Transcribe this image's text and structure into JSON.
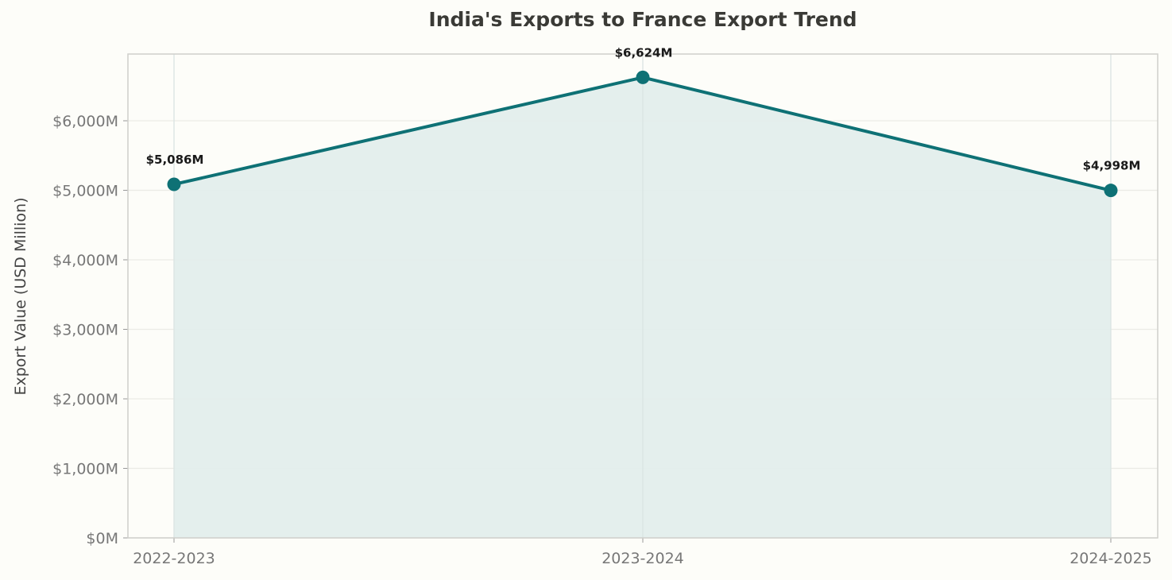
{
  "chart_data": {
    "type": "line",
    "title": "India's Exports to France Export Trend",
    "xlabel": "",
    "ylabel": "Export Value (USD Million)",
    "categories": [
      "2022-2023",
      "2023-2024",
      "2024-2025"
    ],
    "series": [
      {
        "name": "Exports",
        "values": [
          5086,
          6624,
          4998
        ],
        "labels": [
          "$5,086M",
          "$6,624M",
          "$4,998M"
        ],
        "color": "#0e7175",
        "fill": "#e3eeec"
      }
    ],
    "ylim": [
      0,
      6960
    ],
    "yticks": [
      0,
      1000,
      2000,
      3000,
      4000,
      5000,
      6000
    ],
    "ytick_labels": [
      "$0M",
      "$1,000M",
      "$2,000M",
      "$3,000M",
      "$4,000M",
      "$5,000M",
      "$6,000M"
    ],
    "grid": true,
    "legend": null
  }
}
